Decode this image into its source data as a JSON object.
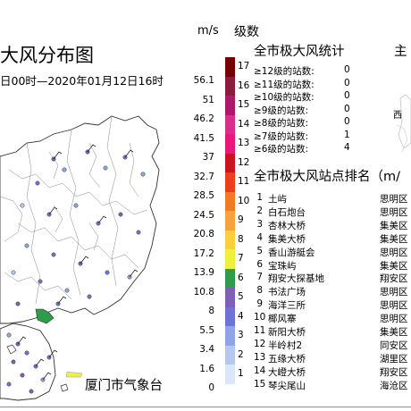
{
  "header": {
    "title": "大风分布图",
    "subtitle": "日00时—2020年01月12日16时",
    "right_title_fragment": "主"
  },
  "credit": "厦门市气象台",
  "legend": {
    "unit_speed": "m/s",
    "unit_level": "级数",
    "speed_labels": [
      "56.1",
      "51",
      "46.2",
      "41.5",
      "37",
      "32.7",
      "28.5",
      "24.5",
      "20.8",
      "17.2",
      "13.9",
      "10.8",
      "8",
      "5.5",
      "3.4",
      "1.6",
      "0"
    ],
    "levels": [
      {
        "level": "17",
        "color": "#7a0000"
      },
      {
        "level": "16",
        "color": "#8b1a3c"
      },
      {
        "level": "15",
        "color": "#b0176b"
      },
      {
        "level": "14",
        "color": "#d62e8a"
      },
      {
        "level": "13",
        "color": "#e5197a"
      },
      {
        "level": "12",
        "color": "#c4161c"
      },
      {
        "level": "11",
        "color": "#e8401a"
      },
      {
        "level": "10",
        "color": "#f47920"
      },
      {
        "level": "9",
        "color": "#f7a23b"
      },
      {
        "level": "8",
        "color": "#fbd040"
      },
      {
        "level": "7",
        "color": "#eef041"
      },
      {
        "level": "6",
        "color": "#2e9d4a"
      },
      {
        "level": "5",
        "color": "#7f5fb8"
      },
      {
        "level": "4",
        "color": "#6e73d6"
      },
      {
        "level": "3",
        "color": "#8fa5e6"
      },
      {
        "level": "2",
        "color": "#b6c8f0"
      },
      {
        "level": "1",
        "color": "#dae6fa"
      }
    ]
  },
  "stats": {
    "heading": "全市极大风统计",
    "rows": [
      {
        "label": "≥12级的站数:",
        "value": "0"
      },
      {
        "label": "≥11级的站数:",
        "value": "0"
      },
      {
        "label": "≥10级的站数:",
        "value": "0"
      },
      {
        "label": "≥9级的站数:",
        "value": "0"
      },
      {
        "label": "≥8级的站数:",
        "value": "0"
      },
      {
        "label": "≥7级的站数:",
        "value": "1"
      },
      {
        "label": "≥6级的站数:",
        "value": "4"
      }
    ]
  },
  "ranking": {
    "heading": "全市极大风站点排名（m/",
    "rows": [
      {
        "rank": "1",
        "name": "土屿",
        "district": "思明区"
      },
      {
        "rank": "2",
        "name": "白石炮台",
        "district": "思明区"
      },
      {
        "rank": "3",
        "name": "杏林大桥",
        "district": "集美区"
      },
      {
        "rank": "4",
        "name": "集美大桥",
        "district": "集美区"
      },
      {
        "rank": "5",
        "name": "香山游艇会",
        "district": "思明区"
      },
      {
        "rank": "6",
        "name": "宝珠屿",
        "district": "集美区"
      },
      {
        "rank": "7",
        "name": "翔安大探基地",
        "district": "翔安区"
      },
      {
        "rank": "8",
        "name": "书法广场",
        "district": "思明区"
      },
      {
        "rank": "9",
        "name": "海洋三所",
        "district": "思明区"
      },
      {
        "rank": "10",
        "name": "椰风寨",
        "district": "思明区"
      },
      {
        "rank": "11",
        "name": "新阳大桥",
        "district": "集美区"
      },
      {
        "rank": "12",
        "name": "半岭村2",
        "district": "同安区"
      },
      {
        "rank": "13",
        "name": "五缘大桥",
        "district": "湖里区"
      },
      {
        "rank": "14",
        "name": "大嶝大桥",
        "district": "翔安区"
      },
      {
        "rank": "15",
        "name": "琴尖尾山",
        "district": "海沧区"
      }
    ]
  },
  "inset": {
    "label": "西"
  }
}
